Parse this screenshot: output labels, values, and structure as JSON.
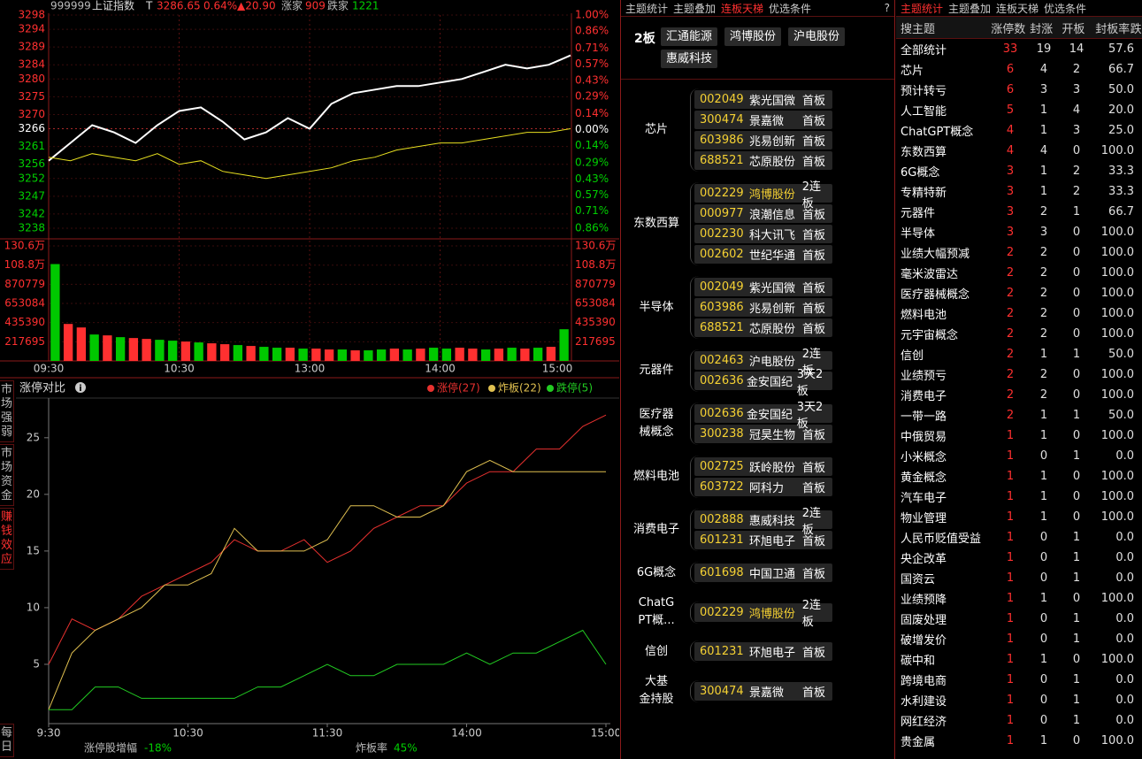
{
  "quote_header": {
    "code": "999999",
    "name": "上证指数",
    "mark": "T",
    "price": "3286.65",
    "pct": "0.64%",
    "change": "▲20.90",
    "up_label": "涨家",
    "up": "909",
    "down_label": "跌家",
    "down": "1221"
  },
  "index_chart": {
    "type": "line",
    "x": [
      0,
      10,
      20,
      30,
      40,
      50,
      60,
      70,
      80,
      90,
      100,
      110,
      120,
      130,
      140,
      150,
      160,
      170,
      180,
      190,
      200,
      210,
      220,
      230,
      240
    ],
    "series": [
      {
        "color": "#ffffff",
        "values": [
          3257,
          3262,
          3267,
          3265,
          3262,
          3267,
          3271,
          3272,
          3268,
          3263,
          3265,
          3269,
          3266,
          3273,
          3276,
          3277,
          3278,
          3278,
          3279,
          3280,
          3282,
          3284,
          3283,
          3284,
          3286.65
        ]
      },
      {
        "color": "#e8e020",
        "values": [
          3258,
          3257,
          3259,
          3258,
          3257,
          3259,
          3256,
          3257,
          3254,
          3253,
          3252,
          3253,
          3254,
          3255,
          3257,
          3258,
          3260,
          3261,
          3262,
          3262,
          3263,
          3264,
          3265,
          3265,
          3266
        ]
      }
    ],
    "xlim": [
      0,
      240
    ],
    "xticks": [
      {
        "value": 0,
        "label": "09:30"
      },
      {
        "value": 60,
        "label": "10:30"
      },
      {
        "value": 120,
        "label": "13:00"
      },
      {
        "value": 180,
        "label": "14:00"
      },
      {
        "value": 240,
        "label": "15:00"
      }
    ],
    "ylim": [
      3238,
      3298
    ],
    "yticks": [
      3298,
      3294,
      3289,
      3284,
      3280,
      3275,
      3270,
      3266,
      3261,
      3256,
      3252,
      3247,
      3242,
      3238
    ],
    "y2lim": [
      -0.86,
      1.0
    ],
    "y2ticks": [
      {
        "value": 1.0,
        "label": "1.00%"
      },
      {
        "value": 0.86,
        "label": "0.86%"
      },
      {
        "value": 0.71,
        "label": "0.71%"
      },
      {
        "value": 0.57,
        "label": "0.57%"
      },
      {
        "value": 0.43,
        "label": "0.43%"
      },
      {
        "value": 0.29,
        "label": "0.29%"
      },
      {
        "value": 0.14,
        "label": "0.14%"
      },
      {
        "value": 0,
        "label": "0.00%"
      },
      {
        "value": -0.14,
        "label": "0.14%"
      },
      {
        "value": -0.29,
        "label": "0.29%"
      },
      {
        "value": -0.43,
        "label": "0.43%"
      },
      {
        "value": -0.57,
        "label": "0.57%"
      },
      {
        "value": -0.71,
        "label": "0.71%"
      },
      {
        "value": -0.86,
        "label": "0.86%"
      }
    ],
    "grid": true
  },
  "volume_chart": {
    "type": "bar",
    "values": [
      1100000,
      420000,
      380000,
      300000,
      290000,
      270000,
      260000,
      250000,
      240000,
      230000,
      220000,
      210000,
      200000,
      190000,
      180000,
      170000,
      160000,
      150000,
      150000,
      140000,
      140000,
      130000,
      130000,
      120000,
      120000,
      130000,
      140000,
      130000,
      140000,
      150000,
      140000,
      150000,
      140000,
      130000,
      140000,
      150000,
      140000,
      150000,
      160000,
      360000
    ],
    "rising": [
      false,
      true,
      true,
      false,
      true,
      false,
      true,
      true,
      false,
      false,
      true,
      false,
      true,
      true,
      false,
      true,
      false,
      false,
      true,
      false,
      true,
      true,
      false,
      true,
      false,
      false,
      true,
      false,
      true,
      false,
      false,
      true,
      true,
      false,
      true,
      false,
      true,
      false,
      true,
      false
    ],
    "colors": {
      "up": "#ff3030",
      "down": "#00c800"
    },
    "ylim": [
      0,
      1306000
    ],
    "yticks": [
      {
        "value": 1306000,
        "label": "130.6万"
      },
      {
        "value": 1088000,
        "label": "108.8万"
      },
      870779,
      653084,
      435390,
      217695
    ]
  },
  "side_tabs": {
    "items": [
      "市场强弱",
      "市场资金",
      "赚钱效应",
      "每日"
    ],
    "active": 2
  },
  "limit_chart": {
    "type": "line",
    "title": "涨停对比",
    "x": [
      0,
      10,
      20,
      30,
      40,
      50,
      60,
      70,
      80,
      90,
      100,
      110,
      120,
      130,
      140,
      150,
      160,
      170,
      180,
      190,
      200,
      210,
      220,
      230,
      240
    ],
    "series": [
      {
        "name": "涨停(27)",
        "color": "#e8312f",
        "values": [
          5,
          9,
          8,
          9,
          11,
          12,
          13,
          14,
          16,
          15,
          15,
          16,
          14,
          15,
          17,
          18,
          19,
          19,
          21,
          22,
          22,
          24,
          24,
          26,
          27
        ]
      },
      {
        "name": "炸板(22)",
        "color": "#e0c050",
        "values": [
          1,
          6,
          8,
          9,
          10,
          12,
          12,
          13,
          17,
          15,
          15,
          15,
          16,
          19,
          19,
          18,
          18,
          19,
          22,
          23,
          22,
          22,
          22,
          22,
          22
        ]
      },
      {
        "name": "跌停(5)",
        "color": "#22cc22",
        "values": [
          1,
          1,
          3,
          3,
          2,
          2,
          2,
          2,
          2,
          3,
          3,
          4,
          5,
          4,
          4,
          5,
          5,
          5,
          6,
          5,
          6,
          6,
          7,
          8,
          5
        ]
      }
    ],
    "xlim": [
      0,
      240
    ],
    "xticks": [
      {
        "value": 0,
        "label": "9:30"
      },
      {
        "value": 60,
        "label": "10:30"
      },
      {
        "value": 120,
        "label": "11:30"
      },
      {
        "value": 180,
        "label": "14:00"
      },
      {
        "value": 240,
        "label": "15:00"
      }
    ],
    "ylim": [
      0,
      28.5
    ],
    "yticks": [
      5,
      10,
      15,
      20,
      25
    ]
  },
  "footer": {
    "increase_label": "涨停股增幅",
    "increase": "-18%",
    "blast_label": "炸板率",
    "blast": "45%"
  },
  "ladder": {
    "tabs": [
      "主题统计",
      "主题叠加",
      "连板天梯",
      "优选条件"
    ],
    "active_tab": 2,
    "help": "?",
    "board_label": "2板",
    "board_stocks": [
      "汇通能源",
      "鸿博股份",
      "沪电股份",
      "惠威科技"
    ],
    "groups": [
      {
        "theme": "芯片",
        "stocks": [
          {
            "code": "002049",
            "name": "紫光国微",
            "tag": "首板"
          },
          {
            "code": "300474",
            "name": "景嘉微",
            "tag": "首板"
          },
          {
            "code": "603986",
            "name": "兆易创新",
            "tag": "首板"
          },
          {
            "code": "688521",
            "name": "芯原股份",
            "tag": "首板"
          }
        ]
      },
      {
        "theme": "东数西算",
        "stocks": [
          {
            "code": "002229",
            "name": "鸿博股份",
            "tag": "2连板",
            "highlight": true
          },
          {
            "code": "000977",
            "name": "浪潮信息",
            "tag": "首板"
          },
          {
            "code": "002230",
            "name": "科大讯飞",
            "tag": "首板"
          },
          {
            "code": "002602",
            "name": "世纪华通",
            "tag": "首板"
          }
        ]
      },
      {
        "theme": "半导体",
        "stocks": [
          {
            "code": "002049",
            "name": "紫光国微",
            "tag": "首板"
          },
          {
            "code": "603986",
            "name": "兆易创新",
            "tag": "首板"
          },
          {
            "code": "688521",
            "name": "芯原股份",
            "tag": "首板"
          }
        ]
      },
      {
        "theme": "元器件",
        "stocks": [
          {
            "code": "002463",
            "name": "沪电股份",
            "tag": "2连板"
          },
          {
            "code": "002636",
            "name": "金安国纪",
            "tag": "3天2板"
          }
        ]
      },
      {
        "theme": "医疗器械概念",
        "stocks": [
          {
            "code": "002636",
            "name": "金安国纪",
            "tag": "3天2板"
          },
          {
            "code": "300238",
            "name": "冠昊生物",
            "tag": "首板"
          }
        ]
      },
      {
        "theme": "燃料电池",
        "stocks": [
          {
            "code": "002725",
            "name": "跃岭股份",
            "tag": "首板"
          },
          {
            "code": "603722",
            "name": "阿科力",
            "tag": "首板"
          }
        ]
      },
      {
        "theme": "消费电子",
        "stocks": [
          {
            "code": "002888",
            "name": "惠威科技",
            "tag": "2连板"
          },
          {
            "code": "601231",
            "name": "环旭电子",
            "tag": "首板"
          }
        ]
      },
      {
        "theme": "6G概念",
        "stocks": [
          {
            "code": "601698",
            "name": "中国卫通",
            "tag": "首板"
          }
        ]
      },
      {
        "theme": "ChatGPT概...",
        "stocks": [
          {
            "code": "002229",
            "name": "鸿博股份",
            "tag": "2连板",
            "highlight": true
          }
        ]
      },
      {
        "theme": "信创",
        "stocks": [
          {
            "code": "601231",
            "name": "环旭电子",
            "tag": "首板"
          }
        ]
      },
      {
        "theme": "大基金持股",
        "stocks": [
          {
            "code": "300474",
            "name": "景嘉微",
            "tag": "首板"
          }
        ]
      }
    ]
  },
  "theme_table": {
    "tabs": [
      "主题统计",
      "主题叠加",
      "连板天梯",
      "优选条件"
    ],
    "active_tab": 0,
    "columns": [
      "搜主题",
      "涨停数",
      "封涨",
      "开板",
      "封板率",
      "跌"
    ],
    "rows": [
      [
        "全部统计",
        "33",
        "19",
        "14",
        "57.6"
      ],
      [
        "芯片",
        "6",
        "4",
        "2",
        "66.7"
      ],
      [
        "预计转亏",
        "6",
        "3",
        "3",
        "50.0"
      ],
      [
        "人工智能",
        "5",
        "1",
        "4",
        "20.0"
      ],
      [
        "ChatGPT概念",
        "4",
        "1",
        "3",
        "25.0"
      ],
      [
        "东数西算",
        "4",
        "4",
        "0",
        "100.0"
      ],
      [
        "6G概念",
        "3",
        "1",
        "2",
        "33.3"
      ],
      [
        "专精特新",
        "3",
        "1",
        "2",
        "33.3"
      ],
      [
        "元器件",
        "3",
        "2",
        "1",
        "66.7"
      ],
      [
        "半导体",
        "3",
        "3",
        "0",
        "100.0"
      ],
      [
        "业绩大幅预减",
        "2",
        "2",
        "0",
        "100.0"
      ],
      [
        "毫米波雷达",
        "2",
        "2",
        "0",
        "100.0"
      ],
      [
        "医疗器械概念",
        "2",
        "2",
        "0",
        "100.0"
      ],
      [
        "燃料电池",
        "2",
        "2",
        "0",
        "100.0"
      ],
      [
        "元宇宙概念",
        "2",
        "2",
        "0",
        "100.0"
      ],
      [
        "信创",
        "2",
        "1",
        "1",
        "50.0"
      ],
      [
        "业绩预亏",
        "2",
        "2",
        "0",
        "100.0"
      ],
      [
        "消费电子",
        "2",
        "2",
        "0",
        "100.0"
      ],
      [
        "一带一路",
        "2",
        "1",
        "1",
        "50.0"
      ],
      [
        "中俄贸易",
        "1",
        "1",
        "0",
        "100.0"
      ],
      [
        "小米概念",
        "1",
        "0",
        "1",
        "0.0"
      ],
      [
        "黄金概念",
        "1",
        "1",
        "0",
        "100.0"
      ],
      [
        "汽车电子",
        "1",
        "1",
        "0",
        "100.0"
      ],
      [
        "物业管理",
        "1",
        "1",
        "0",
        "100.0"
      ],
      [
        "人民币贬值受益",
        "1",
        "0",
        "1",
        "0.0"
      ],
      [
        "央企改革",
        "1",
        "0",
        "1",
        "0.0"
      ],
      [
        "国资云",
        "1",
        "0",
        "1",
        "0.0"
      ],
      [
        "业绩预降",
        "1",
        "1",
        "0",
        "100.0"
      ],
      [
        "固废处理",
        "1",
        "0",
        "1",
        "0.0"
      ],
      [
        "破增发价",
        "1",
        "0",
        "1",
        "0.0"
      ],
      [
        "碳中和",
        "1",
        "1",
        "0",
        "100.0"
      ],
      [
        "跨境电商",
        "1",
        "0",
        "1",
        "0.0"
      ],
      [
        "水利建设",
        "1",
        "0",
        "1",
        "0.0"
      ],
      [
        "网红经济",
        "1",
        "0",
        "1",
        "0.0"
      ],
      [
        "贵金属",
        "1",
        "1",
        "0",
        "100.0"
      ]
    ]
  }
}
